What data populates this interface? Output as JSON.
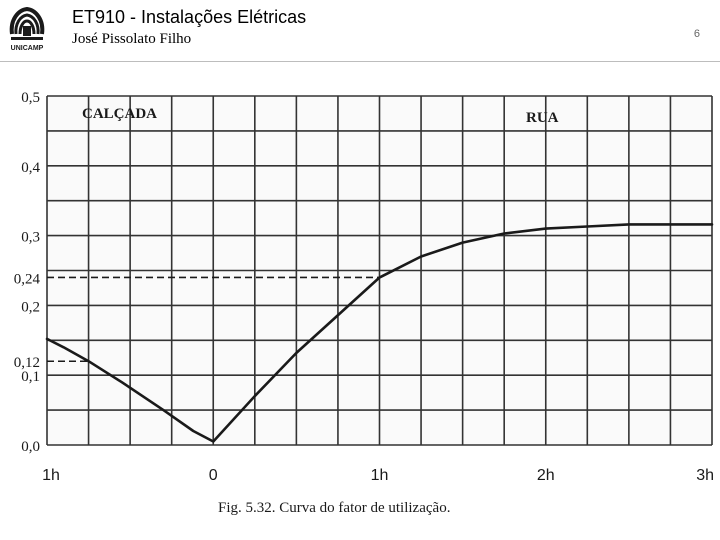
{
  "header": {
    "logo_text": "UNICAMP",
    "title": "ET910 - Instalações Elétricas",
    "author": "José Pissolato Filho",
    "page_number": "6"
  },
  "colors": {
    "background": "#ffffff",
    "chart_background": "#fafafa",
    "ink": "#1a1a1a",
    "grid": "#333333",
    "header_divider": "#bdbdbd"
  },
  "chart_data": {
    "type": "line",
    "caption": "Fig. 5.32. Curva do fator de utilização.",
    "regions": {
      "left": "CALÇADA",
      "right": "RUA"
    },
    "xlabel": "",
    "ylabel": "",
    "x_tick_labels": [
      "1h",
      "0",
      "1h",
      "2h",
      "3h"
    ],
    "x_tick_values": [
      -1,
      0,
      1,
      2,
      3
    ],
    "xlim": [
      -1,
      3
    ],
    "ylim": [
      0,
      0.5
    ],
    "y_tick_labels": [
      "0,5",
      "0,4",
      "0,3",
      "0,24",
      "0,2",
      "0,12",
      "0,1",
      "0,0"
    ],
    "y_tick_values": [
      0.5,
      0.4,
      0.3,
      0.24,
      0.2,
      0.12,
      0.1,
      0.0
    ],
    "grid": true,
    "grid_x_step": 0.25,
    "grid_y_step": 0.05,
    "series": [
      {
        "x": [
          -1,
          -0.9,
          -0.75,
          -0.55,
          -0.3,
          -0.12,
          0,
          0.25,
          0.5,
          1,
          1.25,
          1.5,
          1.75,
          2,
          2.25,
          2.5,
          3
        ],
        "y": [
          0.152,
          0.14,
          0.12,
          0.09,
          0.05,
          0.02,
          0.005,
          0.07,
          0.132,
          0.24,
          0.27,
          0.29,
          0.303,
          0.31,
          0.313,
          0.316,
          0.316
        ]
      }
    ],
    "reference_lines": [
      {
        "y": 0.24,
        "x_from": -1,
        "x_to": 1,
        "style": "dashed"
      },
      {
        "y": 0.12,
        "x_from": -1,
        "x_to": -0.75,
        "style": "dashed"
      }
    ]
  }
}
